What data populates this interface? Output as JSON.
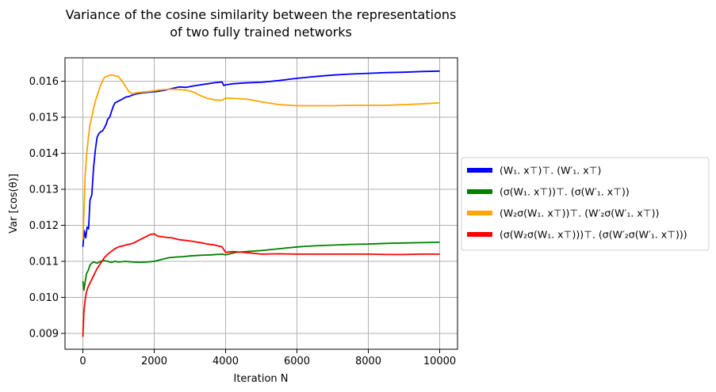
{
  "chart_data": {
    "type": "line",
    "title": [
      "Variance of the cosine similarity between the representations",
      "of  two fully trained networks"
    ],
    "xlabel": "Iteration N",
    "ylabel": "Var [cos(θ)]",
    "xlim": [
      -500,
      10500
    ],
    "ylim": [
      0.00856,
      0.01665
    ],
    "xticks": [
      0,
      2000,
      4000,
      6000,
      8000,
      10000
    ],
    "yticks": [
      0.009,
      0.01,
      0.011,
      0.012,
      0.013,
      0.014,
      0.015,
      0.016
    ],
    "ytick_labels": [
      "0.009",
      "0.010",
      "0.011",
      "0.012",
      "0.013",
      "0.014",
      "0.015",
      "0.016"
    ],
    "grid": true,
    "legend_position": "right, outside plot",
    "series": [
      {
        "name": "(W₁. x⊤)⊤. (W′₁. x⊤)",
        "color": "#0000ff",
        "points": [
          [
            0,
            0.0114
          ],
          [
            40,
            0.01185
          ],
          [
            80,
            0.01165
          ],
          [
            120,
            0.01195
          ],
          [
            160,
            0.0119
          ],
          [
            200,
            0.0127
          ],
          [
            250,
            0.01285
          ],
          [
            300,
            0.0136
          ],
          [
            350,
            0.0141
          ],
          [
            400,
            0.01445
          ],
          [
            450,
            0.01455
          ],
          [
            500,
            0.0146
          ],
          [
            550,
            0.01462
          ],
          [
            600,
            0.0147
          ],
          [
            650,
            0.0148
          ],
          [
            700,
            0.01495
          ],
          [
            750,
            0.015
          ],
          [
            800,
            0.01515
          ],
          [
            850,
            0.0153
          ],
          [
            900,
            0.0154
          ],
          [
            1000,
            0.01545
          ],
          [
            1100,
            0.0155
          ],
          [
            1200,
            0.01556
          ],
          [
            1300,
            0.01558
          ],
          [
            1400,
            0.01562
          ],
          [
            1500,
            0.01565
          ],
          [
            1700,
            0.01568
          ],
          [
            1900,
            0.0157
          ],
          [
            2100,
            0.01572
          ],
          [
            2300,
            0.01575
          ],
          [
            2500,
            0.0158
          ],
          [
            2700,
            0.01584
          ],
          [
            2900,
            0.01583
          ],
          [
            3100,
            0.01587
          ],
          [
            3300,
            0.0159
          ],
          [
            3500,
            0.01593
          ],
          [
            3700,
            0.01596
          ],
          [
            3900,
            0.01598
          ],
          [
            3950,
            0.01588
          ],
          [
            4000,
            0.0159
          ],
          [
            4200,
            0.01593
          ],
          [
            4500,
            0.01595
          ],
          [
            5000,
            0.01597
          ],
          [
            5500,
            0.01602
          ],
          [
            6000,
            0.01608
          ],
          [
            6500,
            0.01613
          ],
          [
            7000,
            0.01617
          ],
          [
            7500,
            0.0162
          ],
          [
            8000,
            0.01622
          ],
          [
            8500,
            0.01624
          ],
          [
            9000,
            0.01625
          ],
          [
            9500,
            0.01627
          ],
          [
            10000,
            0.01628
          ]
        ]
      },
      {
        "name": "(σ(W₁. x⊤))⊤. (σ(W′₁. x⊤))",
        "color": "#008000",
        "points": [
          [
            0,
            0.01045
          ],
          [
            30,
            0.0102
          ],
          [
            60,
            0.0104
          ],
          [
            100,
            0.01065
          ],
          [
            150,
            0.01075
          ],
          [
            200,
            0.0109
          ],
          [
            250,
            0.01095
          ],
          [
            300,
            0.01098
          ],
          [
            400,
            0.01095
          ],
          [
            500,
            0.011
          ],
          [
            600,
            0.01102
          ],
          [
            700,
            0.011
          ],
          [
            800,
            0.01097
          ],
          [
            900,
            0.011
          ],
          [
            1000,
            0.01098
          ],
          [
            1200,
            0.011
          ],
          [
            1400,
            0.01098
          ],
          [
            1600,
            0.01097
          ],
          [
            1800,
            0.01098
          ],
          [
            2000,
            0.011
          ],
          [
            2200,
            0.01105
          ],
          [
            2400,
            0.0111
          ],
          [
            2600,
            0.01112
          ],
          [
            2800,
            0.01113
          ],
          [
            3000,
            0.01115
          ],
          [
            3300,
            0.01117
          ],
          [
            3600,
            0.01118
          ],
          [
            3900,
            0.0112
          ],
          [
            4000,
            0.01118
          ],
          [
            4300,
            0.01125
          ],
          [
            4700,
            0.01128
          ],
          [
            5000,
            0.0113
          ],
          [
            5500,
            0.01135
          ],
          [
            6000,
            0.0114
          ],
          [
            6500,
            0.01143
          ],
          [
            7000,
            0.01145
          ],
          [
            7500,
            0.01147
          ],
          [
            8000,
            0.01148
          ],
          [
            8500,
            0.0115
          ],
          [
            9000,
            0.01151
          ],
          [
            9500,
            0.01152
          ],
          [
            10000,
            0.01153
          ]
        ]
      },
      {
        "name": "(W₂σ(W₁. x⊤))⊤. (W′₂σ(W′₁. x⊤))",
        "color": "#ffa500",
        "points": [
          [
            0,
            0.0116
          ],
          [
            30,
            0.0123
          ],
          [
            60,
            0.0133
          ],
          [
            100,
            0.0139
          ],
          [
            150,
            0.0144
          ],
          [
            200,
            0.0148
          ],
          [
            250,
            0.015
          ],
          [
            300,
            0.01525
          ],
          [
            350,
            0.01545
          ],
          [
            400,
            0.0156
          ],
          [
            450,
            0.01575
          ],
          [
            500,
            0.0159
          ],
          [
            550,
            0.016
          ],
          [
            600,
            0.0161
          ],
          [
            700,
            0.01615
          ],
          [
            800,
            0.01617
          ],
          [
            900,
            0.01615
          ],
          [
            1000,
            0.01613
          ],
          [
            1100,
            0.016
          ],
          [
            1200,
            0.01585
          ],
          [
            1300,
            0.0157
          ],
          [
            1400,
            0.01565
          ],
          [
            1500,
            0.01568
          ],
          [
            1700,
            0.0157
          ],
          [
            1900,
            0.01572
          ],
          [
            2100,
            0.01575
          ],
          [
            2300,
            0.01577
          ],
          [
            2500,
            0.01578
          ],
          [
            2700,
            0.01577
          ],
          [
            2900,
            0.01575
          ],
          [
            3100,
            0.0157
          ],
          [
            3300,
            0.0156
          ],
          [
            3500,
            0.01552
          ],
          [
            3700,
            0.01548
          ],
          [
            3900,
            0.01547
          ],
          [
            4000,
            0.01553
          ],
          [
            4300,
            0.01552
          ],
          [
            4600,
            0.0155
          ],
          [
            5000,
            0.01543
          ],
          [
            5500,
            0.01535
          ],
          [
            6000,
            0.01532
          ],
          [
            6500,
            0.01532
          ],
          [
            7000,
            0.01532
          ],
          [
            7500,
            0.01533
          ],
          [
            8000,
            0.01533
          ],
          [
            8500,
            0.01533
          ],
          [
            9000,
            0.01535
          ],
          [
            9500,
            0.01537
          ],
          [
            10000,
            0.0154
          ]
        ]
      },
      {
        "name": "(σ(W₂σ(W₁. x⊤)))⊤. (σ(W′₂σ(W′₁. x⊤)))",
        "color": "#ff0000",
        "points": [
          [
            0,
            0.0089
          ],
          [
            30,
            0.0096
          ],
          [
            60,
            0.0099
          ],
          [
            100,
            0.01015
          ],
          [
            150,
            0.0103
          ],
          [
            200,
            0.0104
          ],
          [
            250,
            0.0105
          ],
          [
            300,
            0.0106
          ],
          [
            400,
            0.0108
          ],
          [
            500,
            0.01095
          ],
          [
            600,
            0.0111
          ],
          [
            700,
            0.0112
          ],
          [
            800,
            0.01128
          ],
          [
            900,
            0.01135
          ],
          [
            1000,
            0.0114
          ],
          [
            1200,
            0.01145
          ],
          [
            1400,
            0.0115
          ],
          [
            1600,
            0.0116
          ],
          [
            1800,
            0.0117
          ],
          [
            1900,
            0.01175
          ],
          [
            2000,
            0.01176
          ],
          [
            2100,
            0.0117
          ],
          [
            2300,
            0.01167
          ],
          [
            2500,
            0.01165
          ],
          [
            2700,
            0.0116
          ],
          [
            2900,
            0.01158
          ],
          [
            3100,
            0.01155
          ],
          [
            3300,
            0.01152
          ],
          [
            3500,
            0.01148
          ],
          [
            3700,
            0.01145
          ],
          [
            3900,
            0.0114
          ],
          [
            4000,
            0.01125
          ],
          [
            4200,
            0.01127
          ],
          [
            4500,
            0.01125
          ],
          [
            5000,
            0.0112
          ],
          [
            5500,
            0.01121
          ],
          [
            6000,
            0.0112
          ],
          [
            6500,
            0.0112
          ],
          [
            7000,
            0.0112
          ],
          [
            7500,
            0.0112
          ],
          [
            8000,
            0.0112
          ],
          [
            8500,
            0.01119
          ],
          [
            9000,
            0.01119
          ],
          [
            9500,
            0.0112
          ],
          [
            10000,
            0.0112
          ]
        ]
      }
    ]
  }
}
